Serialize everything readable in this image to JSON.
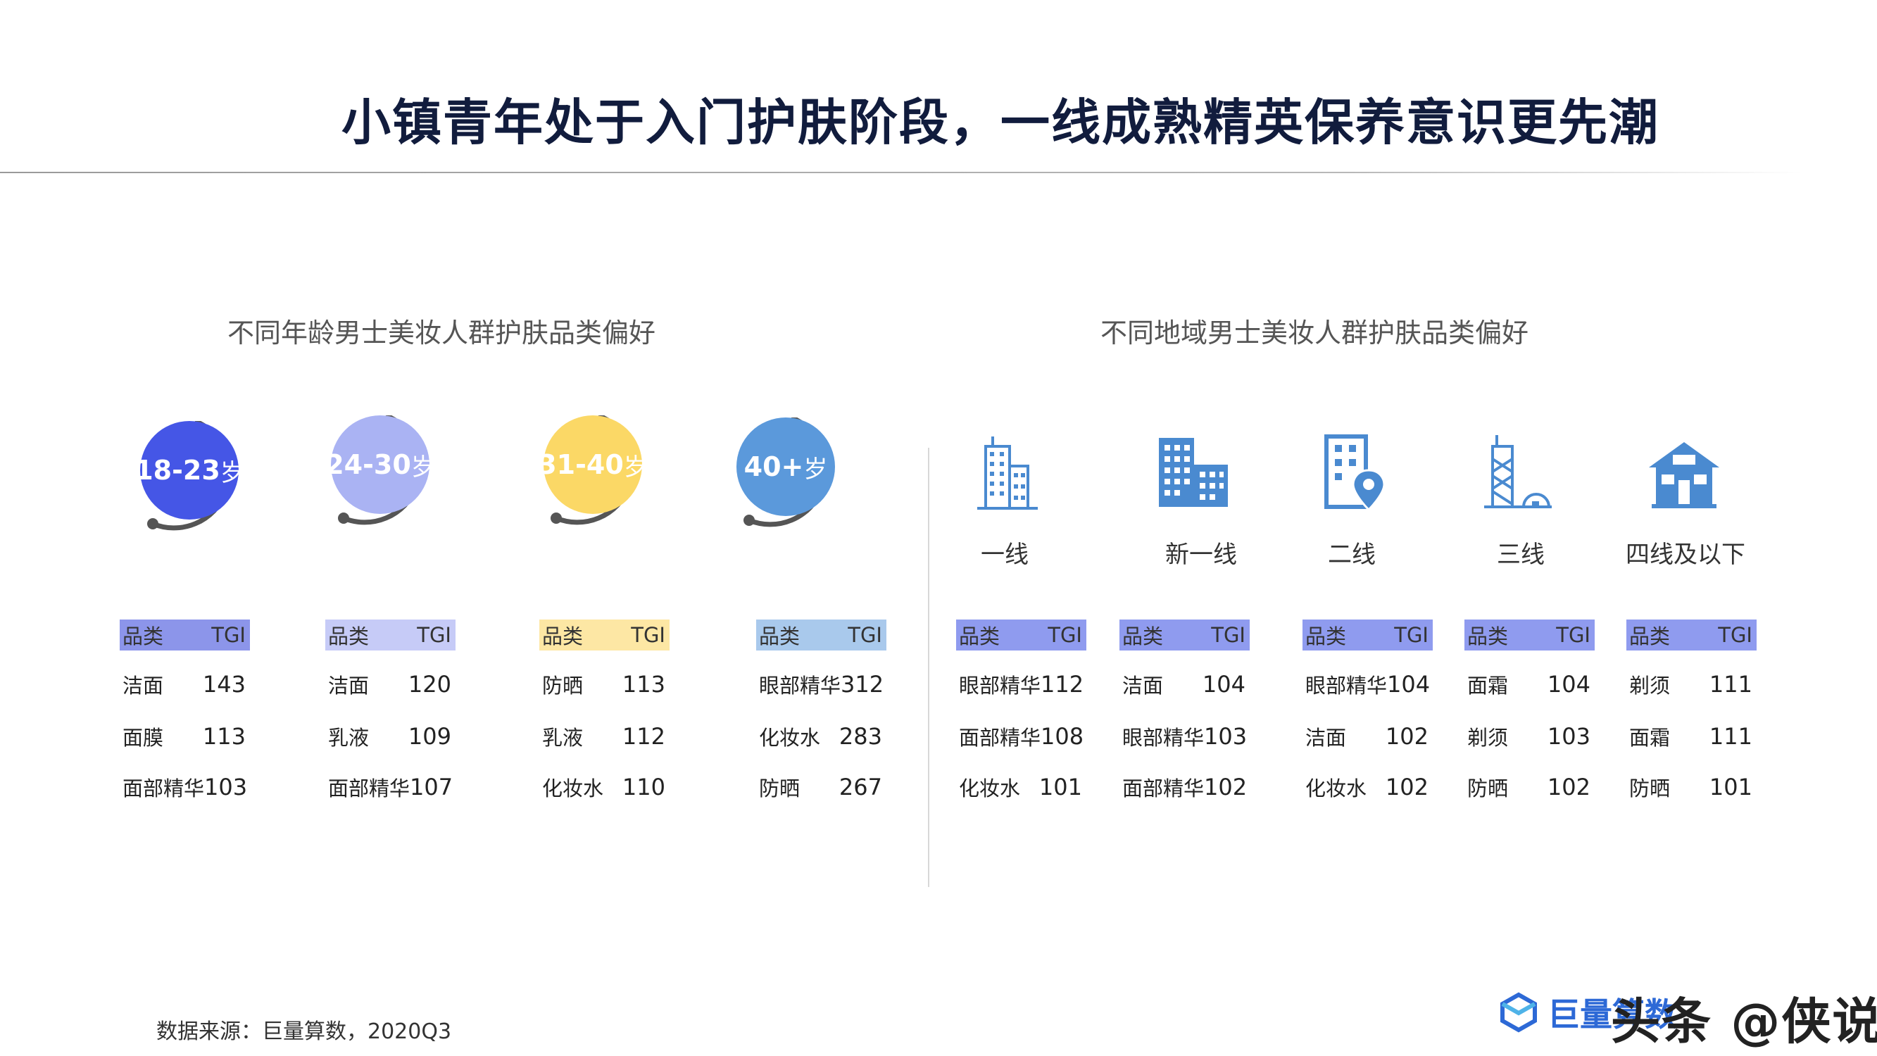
{
  "title": "小镇青年处于入门护肤阶段，一线成熟精英保养意识更先潮",
  "left_section": {
    "title": "不同年龄男士美妆人群护肤品类偏好",
    "groups": [
      {
        "num": "18-23",
        "suffix": "岁",
        "color": "#4556e6",
        "head_color": "#8c95ea",
        "head": {
          "cat": "品类",
          "tgi": "TGI"
        },
        "rows": [
          {
            "cat": "洁面",
            "val": "143"
          },
          {
            "cat": "面膜",
            "val": "113"
          },
          {
            "cat": "面部精华",
            "val": "103"
          }
        ]
      },
      {
        "num": "24-30",
        "suffix": "岁",
        "color": "#aab3f3",
        "head_color": "#c6cbf7",
        "head": {
          "cat": "品类",
          "tgi": "TGI"
        },
        "rows": [
          {
            "cat": "洁面",
            "val": "120"
          },
          {
            "cat": "乳液",
            "val": "109"
          },
          {
            "cat": "面部精华",
            "val": "107"
          }
        ]
      },
      {
        "num": "31-40",
        "suffix": "岁",
        "color": "#fbd866",
        "head_color": "#fde7a4",
        "head": {
          "cat": "品类",
          "tgi": "TGI"
        },
        "rows": [
          {
            "cat": "防晒",
            "val": "113"
          },
          {
            "cat": "乳液",
            "val": "112"
          },
          {
            "cat": "化妆水",
            "val": "110"
          }
        ]
      },
      {
        "num": "40+",
        "suffix": "岁",
        "color": "#5b99db",
        "head_color": "#a9c9ec",
        "head": {
          "cat": "品类",
          "tgi": "TGI"
        },
        "rows": [
          {
            "cat": "眼部精华",
            "val": "312"
          },
          {
            "cat": "化妆水",
            "val": "283"
          },
          {
            "cat": "防晒",
            "val": "267"
          }
        ]
      }
    ]
  },
  "right_section": {
    "title": "不同地域男士美妆人群护肤品类偏好",
    "regions": [
      {
        "label": "一线",
        "icon": "skyscraper-icon",
        "head": {
          "cat": "品类",
          "tgi": "TGI"
        },
        "rows": [
          {
            "cat": "眼部精华",
            "val": "112"
          },
          {
            "cat": "面部精华",
            "val": "108"
          },
          {
            "cat": "化妆水",
            "val": "101"
          }
        ]
      },
      {
        "label": "新一线",
        "icon": "office-buildings-icon",
        "head": {
          "cat": "品类",
          "tgi": "TGI"
        },
        "rows": [
          {
            "cat": "洁面",
            "val": "104"
          },
          {
            "cat": "眼部精华",
            "val": "103"
          },
          {
            "cat": "面部精华",
            "val": "102"
          }
        ]
      },
      {
        "label": "二线",
        "icon": "building-location-icon",
        "head": {
          "cat": "品类",
          "tgi": "TGI"
        },
        "rows": [
          {
            "cat": "眼部精华",
            "val": "104"
          },
          {
            "cat": "洁面",
            "val": "102"
          },
          {
            "cat": "化妆水",
            "val": "102"
          }
        ]
      },
      {
        "label": "三线",
        "icon": "tower-icon",
        "head": {
          "cat": "品类",
          "tgi": "TGI"
        },
        "rows": [
          {
            "cat": "面霜",
            "val": "104"
          },
          {
            "cat": "剃须",
            "val": "103"
          },
          {
            "cat": "防晒",
            "val": "102"
          }
        ]
      },
      {
        "label": "四线及以下",
        "icon": "house-icon",
        "head": {
          "cat": "品类",
          "tgi": "TGI"
        },
        "rows": [
          {
            "cat": "剃须",
            "val": "111"
          },
          {
            "cat": "面霜",
            "val": "111"
          },
          {
            "cat": "防晒",
            "val": "101"
          }
        ]
      }
    ],
    "icon_color": "#4a8ad0",
    "head_color": "#8f9bef"
  },
  "footer": {
    "source": "数据来源：巨量算数，2020Q3",
    "logo_text": "巨量算数",
    "watermark": "头条 @侠说"
  }
}
